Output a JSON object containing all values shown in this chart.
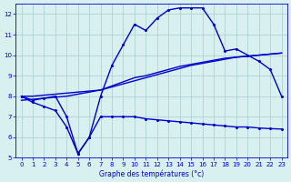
{
  "x": [
    0,
    1,
    2,
    3,
    4,
    5,
    6,
    7,
    8,
    9,
    10,
    11,
    12,
    13,
    14,
    15,
    16,
    17,
    18,
    19,
    20,
    21,
    22,
    23
  ],
  "line_max": [
    8.0,
    7.8,
    7.9,
    8.0,
    7.0,
    5.2,
    6.0,
    8.0,
    9.5,
    10.5,
    11.5,
    11.2,
    11.8,
    12.2,
    12.3,
    12.3,
    12.3,
    11.5,
    10.2,
    10.3,
    10.0,
    9.7,
    9.3,
    8.0
  ],
  "line_mean1": [
    8.0,
    8.0,
    8.05,
    8.1,
    8.15,
    8.2,
    8.25,
    8.3,
    8.45,
    8.6,
    8.75,
    8.9,
    9.05,
    9.2,
    9.35,
    9.5,
    9.6,
    9.7,
    9.8,
    9.9,
    9.95,
    10.0,
    10.05,
    10.1
  ],
  "line_mean2": [
    7.8,
    7.85,
    7.9,
    7.95,
    8.0,
    8.1,
    8.2,
    8.3,
    8.5,
    8.7,
    8.9,
    9.0,
    9.15,
    9.3,
    9.45,
    9.55,
    9.65,
    9.75,
    9.85,
    9.9,
    9.95,
    10.0,
    10.05,
    10.1
  ],
  "line_min": [
    8.0,
    7.7,
    7.5,
    7.3,
    6.5,
    5.2,
    6.0,
    7.0,
    7.0,
    7.0,
    7.0,
    6.9,
    6.85,
    6.8,
    6.75,
    6.7,
    6.65,
    6.6,
    6.55,
    6.5,
    6.5,
    6.45,
    6.42,
    6.4
  ],
  "ylim": [
    5,
    12.5
  ],
  "xlim": [
    -0.5,
    23.5
  ],
  "yticks": [
    5,
    6,
    7,
    8,
    9,
    10,
    11,
    12
  ],
  "xticks": [
    0,
    1,
    2,
    3,
    4,
    5,
    6,
    7,
    8,
    9,
    10,
    11,
    12,
    13,
    14,
    15,
    16,
    17,
    18,
    19,
    20,
    21,
    22,
    23
  ],
  "xlabel": "Graphe des températures (°c)",
  "line_color": "#0000cc",
  "bg_color": "#d8f0f0",
  "grid_color": "#aacccc"
}
